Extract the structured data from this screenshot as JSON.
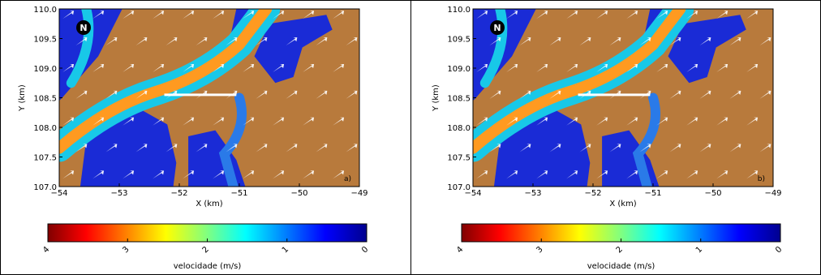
{
  "chart_data": [
    {
      "type": "heatmap",
      "panel_label": "a)",
      "xlabel": "X (km)",
      "ylabel": "Y (km)",
      "xlim": [
        -54,
        -49
      ],
      "ylim": [
        107.0,
        110.0
      ],
      "x_ticks": [
        "−54",
        "−53",
        "−52",
        "−51",
        "−50",
        "−49"
      ],
      "y_ticks": [
        "107.0",
        "107.5",
        "108.0",
        "108.5",
        "109.0",
        "109.5",
        "110.0"
      ],
      "north_label": "N",
      "land_color": "#b87a3c",
      "colorbar": {
        "label": "velocidade (m/s)",
        "ticks": [
          "4",
          "3",
          "2",
          "1",
          "0"
        ],
        "range": [
          4,
          0
        ],
        "colormap": "jet"
      }
    },
    {
      "type": "heatmap",
      "panel_label": "b)",
      "xlabel": "X (km)",
      "ylabel": "Y (km)",
      "xlim": [
        -54,
        -49
      ],
      "ylim": [
        107.0,
        110.0
      ],
      "x_ticks": [
        "−54",
        "−53",
        "−52",
        "−51",
        "−50",
        "−49"
      ],
      "y_ticks": [
        "107.0",
        "107.5",
        "108.0",
        "108.5",
        "109.0",
        "109.5",
        "110.0"
      ],
      "north_label": "N",
      "land_color": "#b87a3c",
      "colorbar": {
        "label": "velocidade (m/s)",
        "ticks": [
          "4",
          "3",
          "2",
          "1",
          "0"
        ],
        "range": [
          4,
          0
        ],
        "colormap": "jet"
      }
    }
  ]
}
